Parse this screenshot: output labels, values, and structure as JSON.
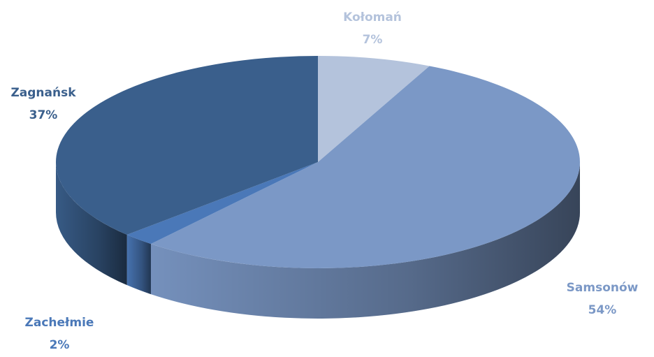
{
  "chart_data": {
    "type": "pie",
    "categories": [
      "Kołomań",
      "Samsonów",
      "Zachełmie",
      "Zagnańsk"
    ],
    "values": [
      7,
      54,
      2,
      37
    ],
    "value_labels": [
      "7%",
      "54%",
      "2%",
      "37%"
    ],
    "colors": [
      "#b4c3dc",
      "#7b98c6",
      "#4a78b8",
      "#3a5f8c"
    ]
  }
}
